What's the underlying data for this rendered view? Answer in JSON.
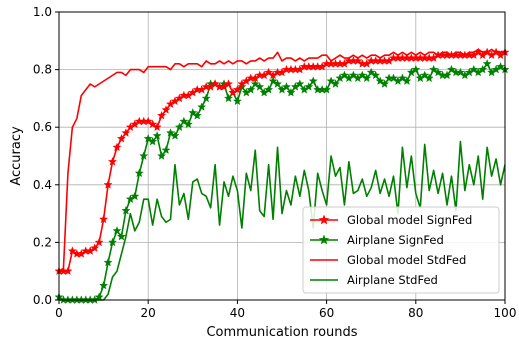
{
  "chart_data": {
    "type": "line",
    "title": "",
    "xlabel": "Communication rounds",
    "ylabel": "Accuracy",
    "xlim": [
      0,
      100
    ],
    "ylim": [
      0,
      1.0
    ],
    "xticks": [
      "0",
      "20",
      "40",
      "60",
      "80",
      "100"
    ],
    "yticks": [
      "0.0",
      "0.2",
      "0.4",
      "0.6",
      "0.8",
      "1.0"
    ],
    "grid": true,
    "legend_position": "lower-right",
    "series": [
      {
        "name": "Global model SignFed",
        "color": "#ff0000",
        "marker": "star",
        "x": [
          0,
          1,
          2,
          3,
          4,
          5,
          6,
          7,
          8,
          9,
          10,
          11,
          12,
          13,
          14,
          15,
          16,
          17,
          18,
          19,
          20,
          21,
          22,
          23,
          24,
          25,
          26,
          27,
          28,
          29,
          30,
          31,
          32,
          33,
          34,
          35,
          36,
          37,
          38,
          39,
          40,
          41,
          42,
          43,
          44,
          45,
          46,
          47,
          48,
          49,
          50,
          51,
          52,
          53,
          54,
          55,
          56,
          57,
          58,
          59,
          60,
          61,
          62,
          63,
          64,
          65,
          66,
          67,
          68,
          69,
          70,
          71,
          72,
          73,
          74,
          75,
          76,
          77,
          78,
          79,
          80,
          81,
          82,
          83,
          84,
          85,
          86,
          87,
          88,
          89,
          90,
          91,
          92,
          93,
          94,
          95,
          96,
          97,
          98,
          99,
          100
        ],
        "y": [
          0.1,
          0.1,
          0.1,
          0.17,
          0.16,
          0.16,
          0.17,
          0.17,
          0.18,
          0.2,
          0.28,
          0.4,
          0.48,
          0.53,
          0.56,
          0.58,
          0.6,
          0.61,
          0.62,
          0.62,
          0.62,
          0.61,
          0.6,
          0.64,
          0.66,
          0.68,
          0.69,
          0.7,
          0.71,
          0.71,
          0.72,
          0.73,
          0.73,
          0.74,
          0.74,
          0.75,
          0.74,
          0.74,
          0.75,
          0.72,
          0.73,
          0.75,
          0.76,
          0.77,
          0.77,
          0.78,
          0.78,
          0.79,
          0.78,
          0.79,
          0.79,
          0.8,
          0.8,
          0.8,
          0.8,
          0.81,
          0.81,
          0.81,
          0.81,
          0.81,
          0.82,
          0.82,
          0.82,
          0.82,
          0.82,
          0.83,
          0.83,
          0.83,
          0.82,
          0.82,
          0.83,
          0.83,
          0.83,
          0.83,
          0.83,
          0.84,
          0.84,
          0.84,
          0.84,
          0.84,
          0.84,
          0.84,
          0.84,
          0.84,
          0.84,
          0.85,
          0.85,
          0.85,
          0.85,
          0.85,
          0.85,
          0.85,
          0.85,
          0.85,
          0.86,
          0.85,
          0.86,
          0.85,
          0.86,
          0.85,
          0.86
        ]
      },
      {
        "name": "Airplane SignFed",
        "color": "#008000",
        "marker": "star",
        "x": [
          0,
          1,
          2,
          3,
          4,
          5,
          6,
          7,
          8,
          9,
          10,
          11,
          12,
          13,
          14,
          15,
          16,
          17,
          18,
          19,
          20,
          21,
          22,
          23,
          24,
          25,
          26,
          27,
          28,
          29,
          30,
          31,
          32,
          33,
          34,
          35,
          36,
          37,
          38,
          39,
          40,
          41,
          42,
          43,
          44,
          45,
          46,
          47,
          48,
          49,
          50,
          51,
          52,
          53,
          54,
          55,
          56,
          57,
          58,
          59,
          60,
          61,
          62,
          63,
          64,
          65,
          66,
          67,
          68,
          69,
          70,
          71,
          72,
          73,
          74,
          75,
          76,
          77,
          78,
          79,
          80,
          81,
          82,
          83,
          84,
          85,
          86,
          87,
          88,
          89,
          90,
          91,
          92,
          93,
          94,
          95,
          96,
          97,
          98,
          99,
          100
        ],
        "y": [
          0.01,
          0.0,
          0.0,
          0.0,
          0.0,
          0.0,
          0.0,
          0.0,
          0.0,
          0.01,
          0.05,
          0.13,
          0.2,
          0.24,
          0.22,
          0.31,
          0.35,
          0.36,
          0.44,
          0.5,
          0.56,
          0.55,
          0.57,
          0.5,
          0.52,
          0.58,
          0.57,
          0.6,
          0.62,
          0.61,
          0.65,
          0.64,
          0.67,
          0.7,
          0.75,
          0.75,
          0.74,
          0.75,
          0.7,
          0.72,
          0.69,
          0.74,
          0.72,
          0.73,
          0.75,
          0.74,
          0.72,
          0.73,
          0.76,
          0.75,
          0.73,
          0.74,
          0.72,
          0.74,
          0.75,
          0.73,
          0.74,
          0.76,
          0.73,
          0.73,
          0.73,
          0.76,
          0.75,
          0.77,
          0.78,
          0.77,
          0.78,
          0.77,
          0.78,
          0.77,
          0.79,
          0.78,
          0.76,
          0.75,
          0.77,
          0.77,
          0.76,
          0.77,
          0.76,
          0.79,
          0.8,
          0.77,
          0.78,
          0.77,
          0.8,
          0.79,
          0.78,
          0.78,
          0.8,
          0.79,
          0.79,
          0.78,
          0.79,
          0.8,
          0.79,
          0.8,
          0.82,
          0.79,
          0.8,
          0.81,
          0.8
        ]
      },
      {
        "name": "Global model StdFed",
        "color": "#ff0000",
        "marker": "none",
        "x": [
          0,
          1,
          2,
          3,
          4,
          5,
          6,
          7,
          8,
          9,
          10,
          11,
          12,
          13,
          14,
          15,
          16,
          17,
          18,
          19,
          20,
          21,
          22,
          23,
          24,
          25,
          26,
          27,
          28,
          29,
          30,
          31,
          32,
          33,
          34,
          35,
          36,
          37,
          38,
          39,
          40,
          41,
          42,
          43,
          44,
          45,
          46,
          47,
          48,
          49,
          50,
          51,
          52,
          53,
          54,
          55,
          56,
          57,
          58,
          59,
          60,
          61,
          62,
          63,
          64,
          65,
          66,
          67,
          68,
          69,
          70,
          71,
          72,
          73,
          74,
          75,
          76,
          77,
          78,
          79,
          80,
          81,
          82,
          83,
          84,
          85,
          86,
          87,
          88,
          89,
          90,
          91,
          92,
          93,
          94,
          95,
          96,
          97,
          98,
          99,
          100
        ],
        "y": [
          0.1,
          0.11,
          0.44,
          0.6,
          0.63,
          0.71,
          0.73,
          0.75,
          0.74,
          0.75,
          0.76,
          0.77,
          0.78,
          0.79,
          0.79,
          0.78,
          0.8,
          0.8,
          0.8,
          0.79,
          0.81,
          0.81,
          0.81,
          0.81,
          0.81,
          0.8,
          0.82,
          0.82,
          0.81,
          0.82,
          0.82,
          0.82,
          0.81,
          0.83,
          0.82,
          0.82,
          0.83,
          0.82,
          0.83,
          0.82,
          0.83,
          0.83,
          0.82,
          0.83,
          0.83,
          0.84,
          0.83,
          0.84,
          0.84,
          0.86,
          0.83,
          0.84,
          0.84,
          0.83,
          0.84,
          0.83,
          0.84,
          0.84,
          0.84,
          0.85,
          0.85,
          0.83,
          0.84,
          0.85,
          0.84,
          0.84,
          0.85,
          0.84,
          0.85,
          0.84,
          0.85,
          0.85,
          0.84,
          0.85,
          0.85,
          0.86,
          0.85,
          0.86,
          0.85,
          0.86,
          0.85,
          0.86,
          0.85,
          0.86,
          0.86,
          0.85,
          0.86,
          0.86,
          0.85,
          0.86,
          0.86,
          0.85,
          0.86,
          0.86,
          0.87,
          0.86,
          0.86,
          0.87,
          0.86,
          0.86,
          0.86
        ]
      },
      {
        "name": "Airplane StdFed",
        "color": "#008000",
        "marker": "none",
        "x": [
          0,
          1,
          2,
          3,
          4,
          5,
          6,
          7,
          8,
          9,
          10,
          11,
          12,
          13,
          14,
          15,
          16,
          17,
          18,
          19,
          20,
          21,
          22,
          23,
          24,
          25,
          26,
          27,
          28,
          29,
          30,
          31,
          32,
          33,
          34,
          35,
          36,
          37,
          38,
          39,
          40,
          41,
          42,
          43,
          44,
          45,
          46,
          47,
          48,
          49,
          50,
          51,
          52,
          53,
          54,
          55,
          56,
          57,
          58,
          59,
          60,
          61,
          62,
          63,
          64,
          65,
          66,
          67,
          68,
          69,
          70,
          71,
          72,
          73,
          74,
          75,
          76,
          77,
          78,
          79,
          80,
          81,
          82,
          83,
          84,
          85,
          86,
          87,
          88,
          89,
          90,
          91,
          92,
          93,
          94,
          95,
          96,
          97,
          98,
          99,
          100
        ],
        "y": [
          0.0,
          0.0,
          0.0,
          0.0,
          0.0,
          0.0,
          0.0,
          0.0,
          0.0,
          0.0,
          0.0,
          0.02,
          0.08,
          0.1,
          0.16,
          0.22,
          0.3,
          0.24,
          0.27,
          0.35,
          0.35,
          0.26,
          0.35,
          0.29,
          0.27,
          0.28,
          0.47,
          0.33,
          0.37,
          0.28,
          0.41,
          0.42,
          0.37,
          0.36,
          0.32,
          0.47,
          0.26,
          0.41,
          0.36,
          0.43,
          0.38,
          0.25,
          0.44,
          0.38,
          0.52,
          0.31,
          0.29,
          0.47,
          0.28,
          0.53,
          0.3,
          0.38,
          0.33,
          0.43,
          0.36,
          0.45,
          0.38,
          0.25,
          0.44,
          0.38,
          0.33,
          0.5,
          0.43,
          0.46,
          0.33,
          0.48,
          0.37,
          0.38,
          0.42,
          0.36,
          0.39,
          0.45,
          0.37,
          0.42,
          0.36,
          0.43,
          0.3,
          0.53,
          0.39,
          0.5,
          0.37,
          0.32,
          0.54,
          0.38,
          0.45,
          0.37,
          0.44,
          0.33,
          0.43,
          0.31,
          0.55,
          0.38,
          0.47,
          0.4,
          0.5,
          0.35,
          0.53,
          0.43,
          0.49,
          0.4,
          0.47
        ]
      }
    ]
  }
}
